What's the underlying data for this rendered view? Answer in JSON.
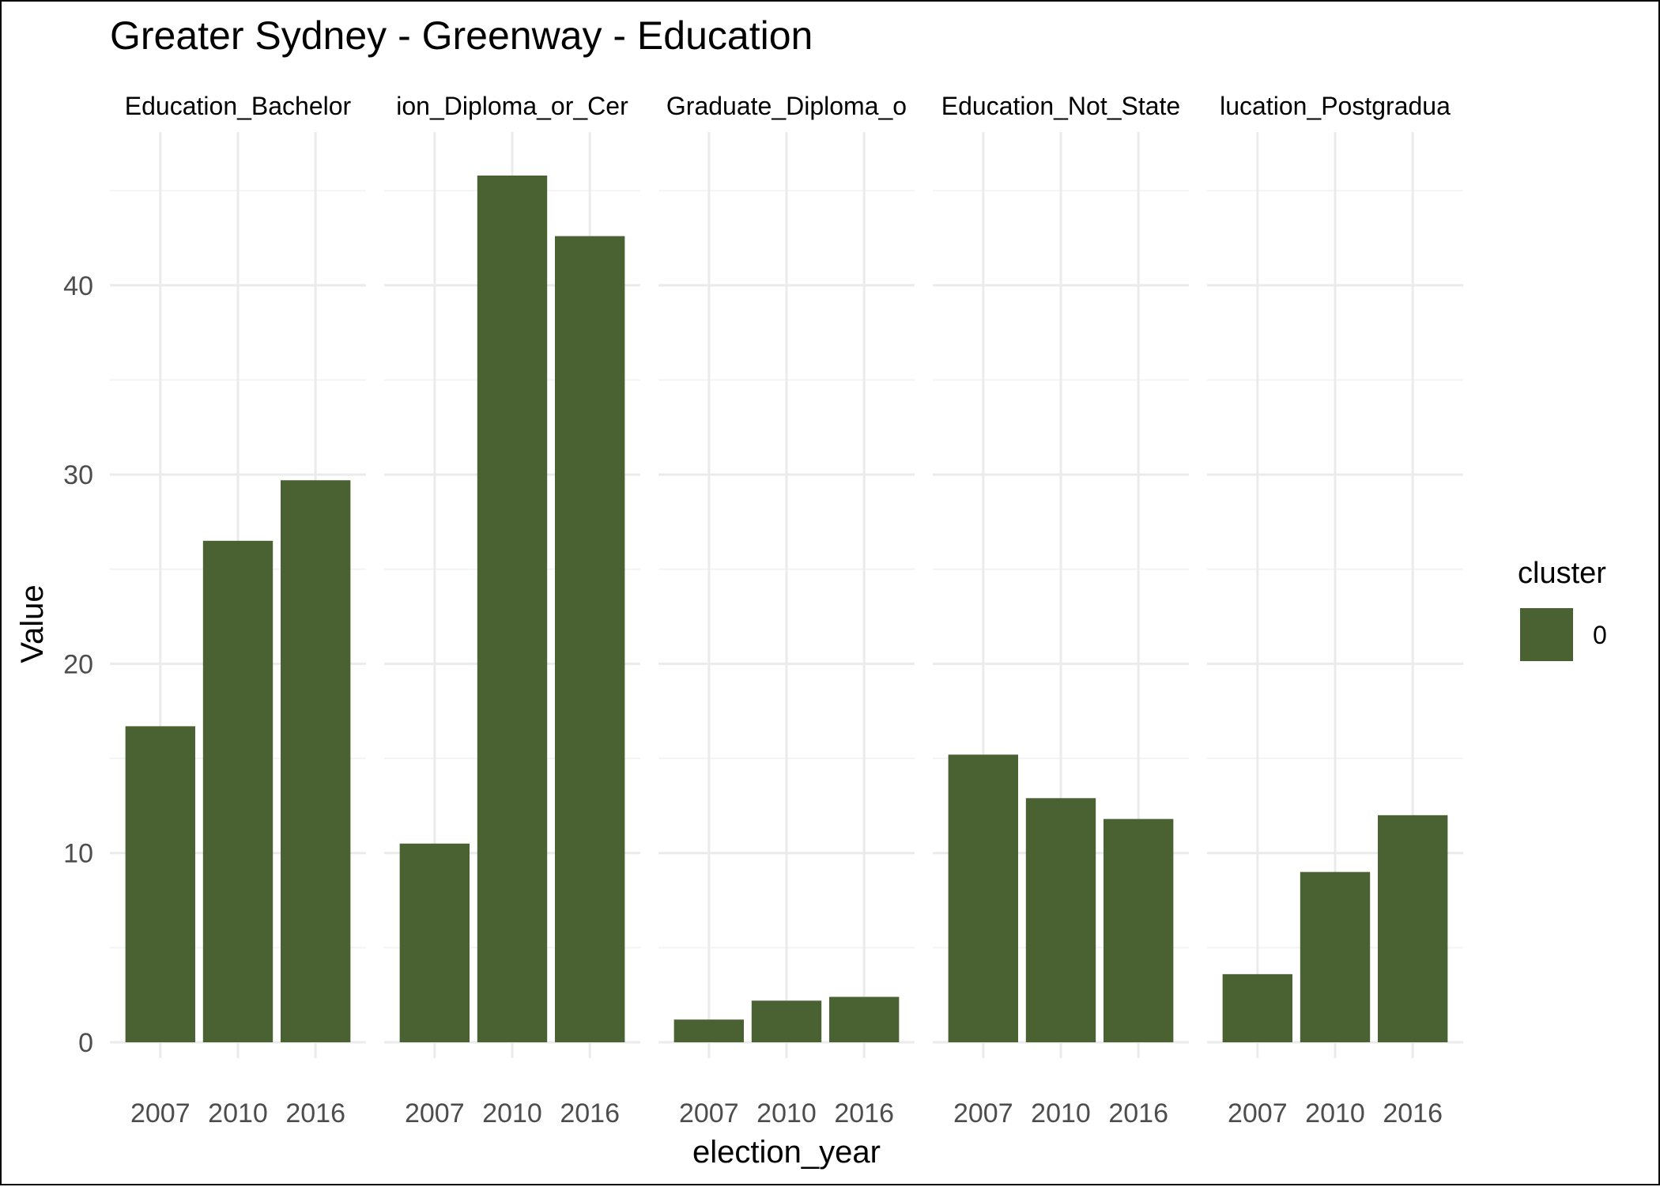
{
  "colors": {
    "bar": "#4a6132",
    "grid_major": "#ebebeb",
    "grid_minor": "#f4f4f4",
    "tick_text": "#4d4d4d",
    "text": "#000000"
  },
  "chart_data": {
    "type": "bar",
    "title": "Greater Sydney - Greenway - Education",
    "xlabel": "election_year",
    "ylabel": "Value",
    "ylim": [
      0,
      48
    ],
    "yticks": [
      0,
      10,
      20,
      30,
      40
    ],
    "grid": true,
    "categories": [
      "2007",
      "2010",
      "2016"
    ],
    "facets": [
      {
        "label": "Education_Bachelor",
        "values": [
          16.7,
          26.5,
          29.7
        ]
      },
      {
        "label": "ion_Diploma_or_Cer",
        "values": [
          10.5,
          45.8,
          42.6
        ]
      },
      {
        "label": "Graduate_Diploma_o",
        "values": [
          1.2,
          2.2,
          2.4
        ]
      },
      {
        "label": "Education_Not_State",
        "values": [
          15.2,
          12.9,
          11.8
        ]
      },
      {
        "label": "lucation_Postgradua",
        "values": [
          3.6,
          9.0,
          12.0
        ]
      }
    ],
    "legend": {
      "title": "cluster",
      "position": "right",
      "items": [
        {
          "label": "0",
          "color": "#4a6132"
        }
      ]
    }
  }
}
